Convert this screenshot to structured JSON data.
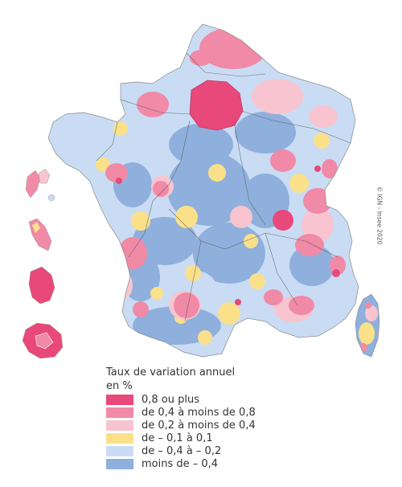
{
  "credit": "© IGN - Insee 2020",
  "legend": {
    "title_line1": "Taux de variation annuel",
    "title_line2": "en %",
    "items": [
      {
        "label": "0,8 ou plus",
        "color": "#e8497a"
      },
      {
        "label": "de 0,4 à moins de 0,8",
        "color": "#f08aa6"
      },
      {
        "label": "de 0,2 à moins de 0,4",
        "color": "#f7c4d0"
      },
      {
        "label": "de – 0,1 à 0,1",
        "color": "#fbe08a"
      },
      {
        "label": "de – 0,4 à – 0,2",
        "color": "#c9dcf4"
      },
      {
        "label": "moins de – 0,4",
        "color": "#8fb0dd"
      }
    ]
  }
}
